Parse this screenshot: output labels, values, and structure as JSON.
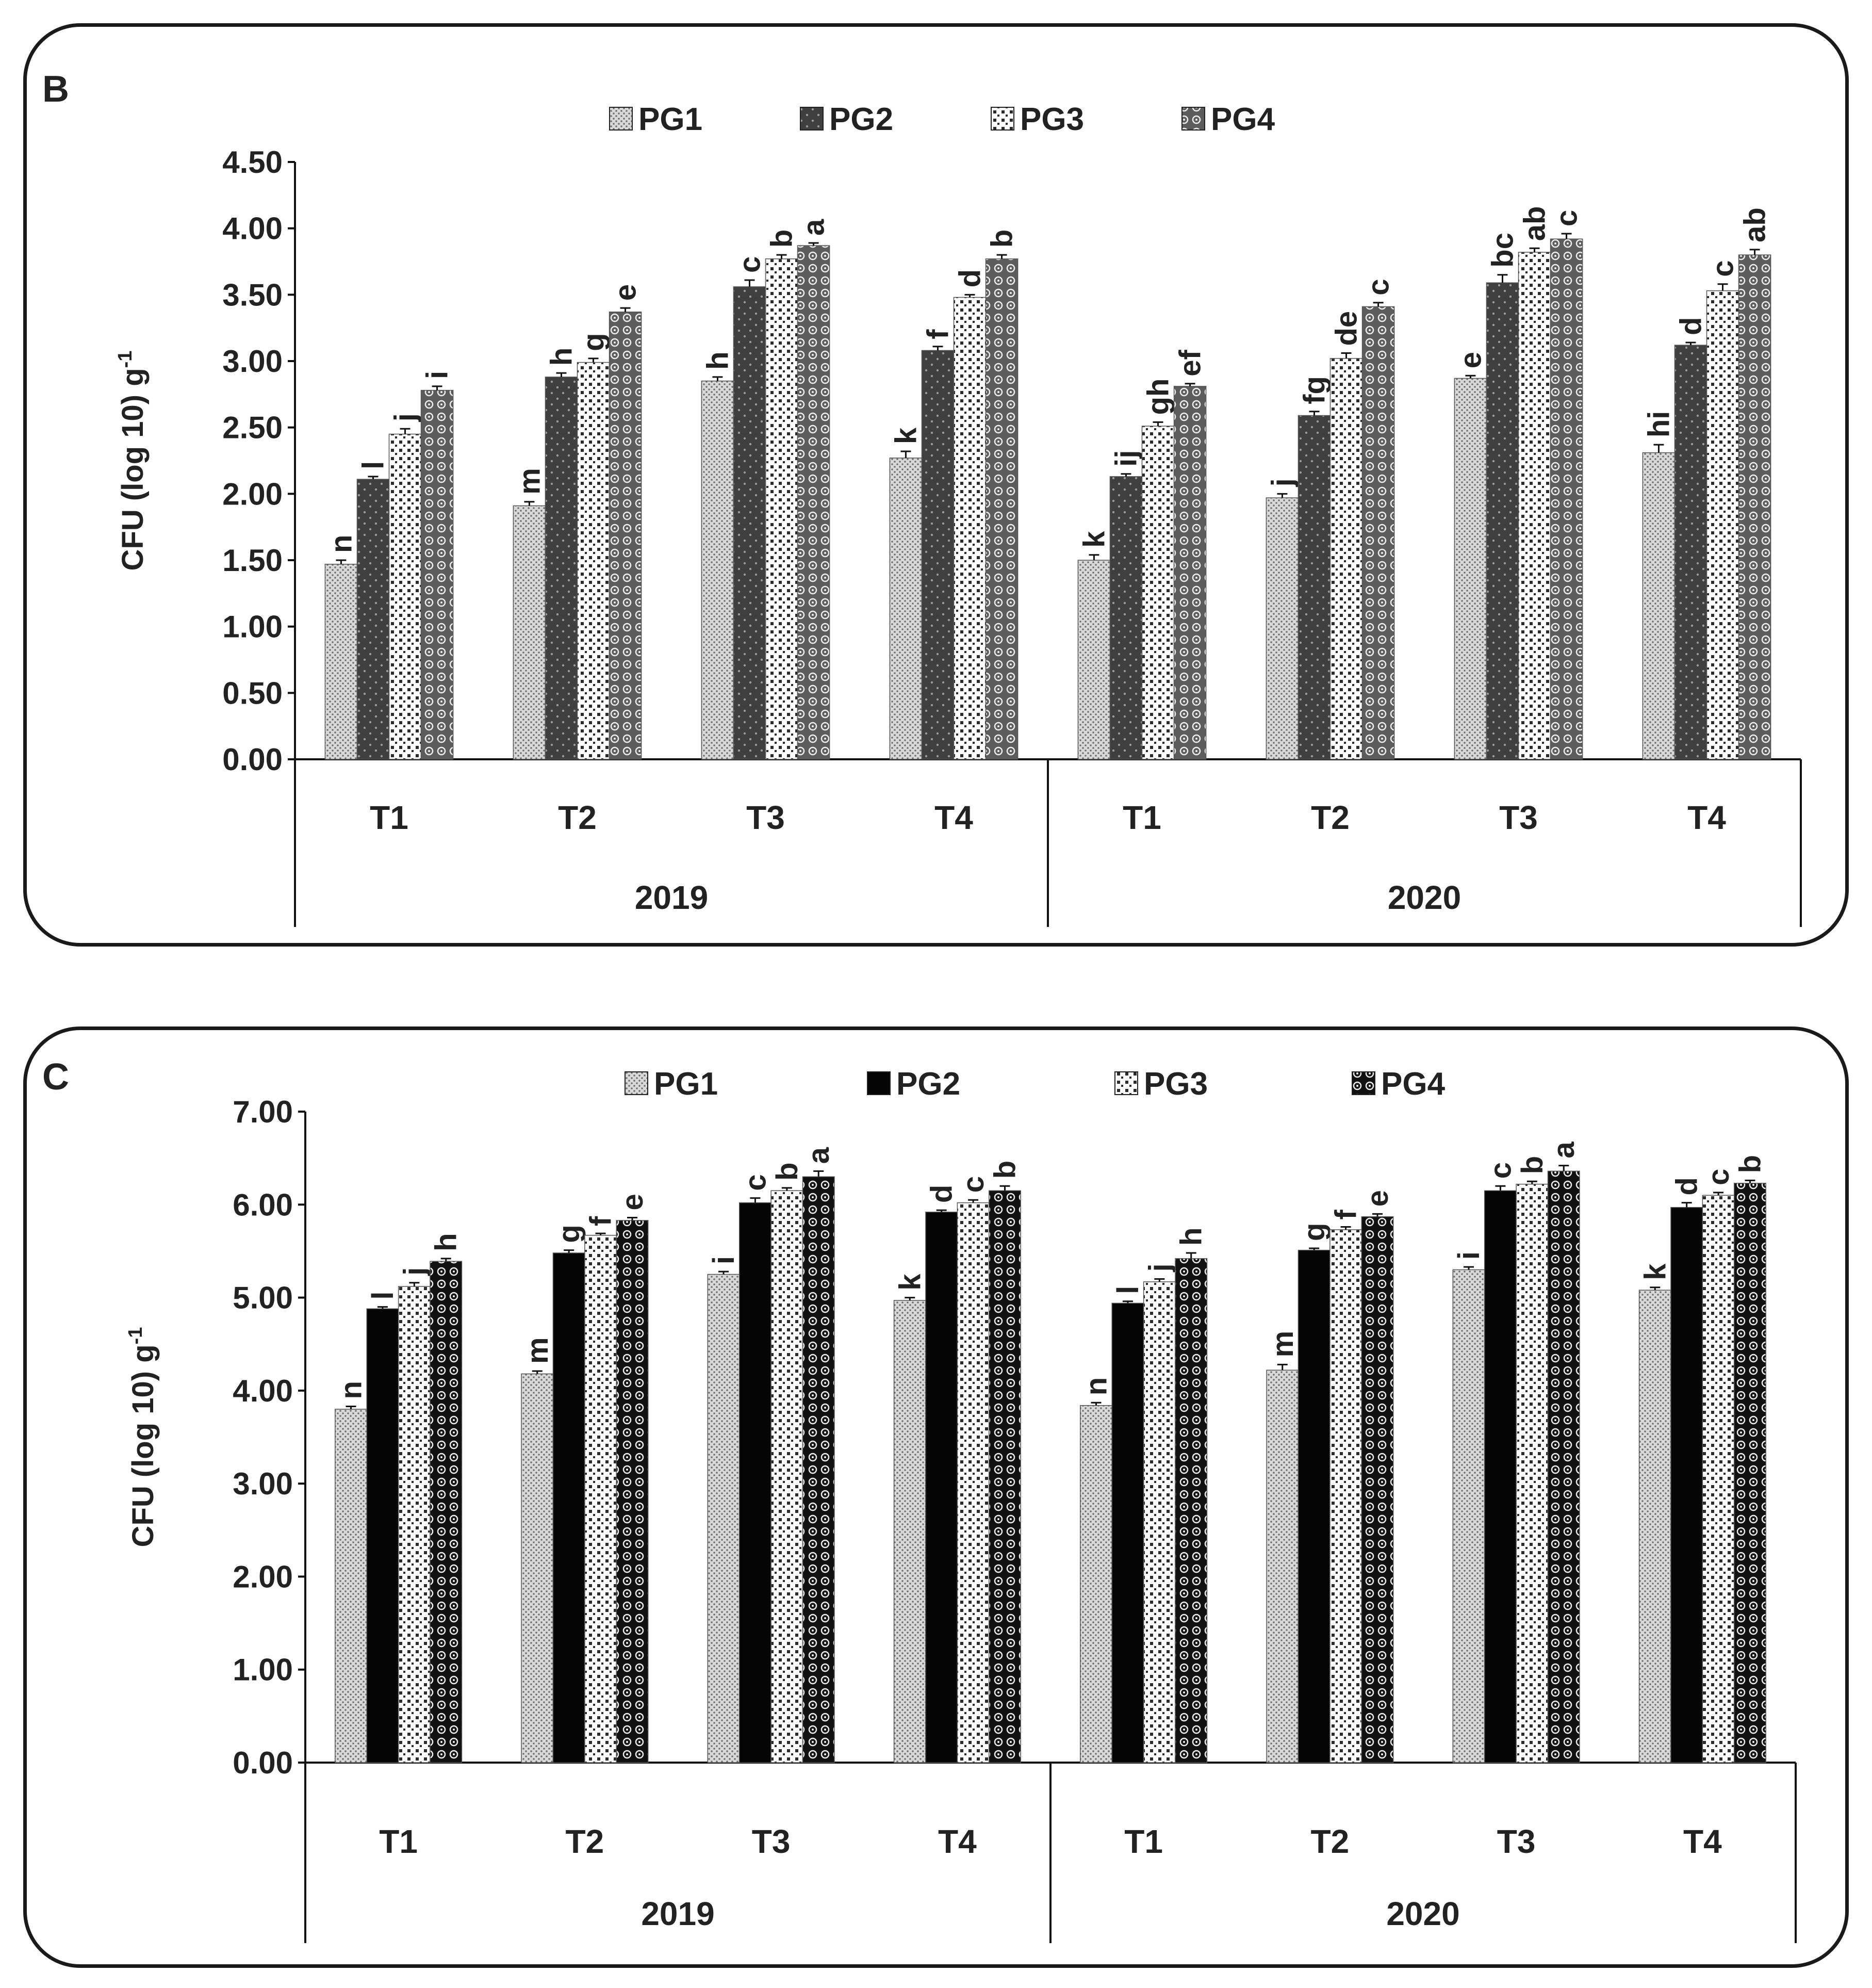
{
  "chart_data": [
    {
      "type": "bar",
      "panel_label": "B",
      "ylabel_main": "CFU (log 10) g",
      "ylabel_sup": "-1",
      "ylim": [
        0,
        4.5
      ],
      "yticks": [
        "0.00",
        "0.50",
        "1.00",
        "1.50",
        "2.00",
        "2.50",
        "3.00",
        "3.50",
        "4.00",
        "4.50"
      ],
      "legend_position": "top-center",
      "groups": [
        "2019",
        "2020"
      ],
      "categories": [
        "T1",
        "T2",
        "T3",
        "T4",
        "T1",
        "T2",
        "T3",
        "T4"
      ],
      "series": [
        {
          "name": "PG1",
          "values": [
            1.47,
            1.91,
            2.85,
            2.27,
            1.5,
            1.97,
            2.87,
            2.31
          ],
          "errors": [
            0.03,
            0.03,
            0.03,
            0.05,
            0.04,
            0.03,
            0.02,
            0.06
          ],
          "labels": [
            "n",
            "m",
            "h",
            "k",
            "k",
            "j",
            "e",
            "hi"
          ]
        },
        {
          "name": "PG2",
          "values": [
            2.11,
            2.88,
            3.56,
            3.08,
            2.13,
            2.59,
            3.59,
            3.12
          ],
          "errors": [
            0.02,
            0.03,
            0.05,
            0.03,
            0.02,
            0.03,
            0.06,
            0.02
          ],
          "labels": [
            "l",
            "h",
            "c",
            "f",
            "ij",
            "fg",
            "bc",
            "d"
          ]
        },
        {
          "name": "PG3",
          "values": [
            2.45,
            2.99,
            3.77,
            3.48,
            2.51,
            3.02,
            3.82,
            3.53
          ],
          "errors": [
            0.04,
            0.03,
            0.03,
            0.02,
            0.03,
            0.04,
            0.03,
            0.05
          ],
          "labels": [
            "j",
            "g",
            "b",
            "d",
            "gh",
            "de",
            "ab",
            "c"
          ]
        },
        {
          "name": "PG4",
          "values": [
            2.78,
            3.37,
            3.87,
            3.77,
            2.81,
            3.41,
            3.92,
            3.8
          ],
          "errors": [
            0.03,
            0.03,
            0.02,
            0.03,
            0.02,
            0.03,
            0.04,
            0.04
          ],
          "labels": [
            "i",
            "e",
            "a",
            "b",
            "ef",
            "c",
            "c",
            "ab"
          ]
        }
      ]
    },
    {
      "type": "bar",
      "panel_label": "C",
      "ylabel_main": "CFU (log 10) g",
      "ylabel_sup": "-1",
      "ylim": [
        0,
        7
      ],
      "yticks": [
        "0.00",
        "1.00",
        "2.00",
        "3.00",
        "4.00",
        "5.00",
        "6.00",
        "7.00"
      ],
      "legend_position": "top-center",
      "groups": [
        "2019",
        "2020"
      ],
      "categories": [
        "T1",
        "T2",
        "T3",
        "T4",
        "T1",
        "T2",
        "T3",
        "T4"
      ],
      "series": [
        {
          "name": "PG1",
          "values": [
            3.8,
            4.18,
            5.25,
            4.97,
            3.84,
            4.22,
            5.3,
            5.08
          ],
          "errors": [
            0.03,
            0.03,
            0.03,
            0.03,
            0.03,
            0.06,
            0.03,
            0.03
          ],
          "labels": [
            "n",
            "m",
            "i",
            "k",
            "n",
            "m",
            "i",
            "k"
          ]
        },
        {
          "name": "PG2",
          "values": [
            4.88,
            5.48,
            6.02,
            5.92,
            4.94,
            5.51,
            6.15,
            5.97
          ],
          "errors": [
            0.02,
            0.03,
            0.05,
            0.02,
            0.02,
            0.02,
            0.05,
            0.05
          ],
          "labels": [
            "l",
            "g",
            "c",
            "d",
            "l",
            "g",
            "c",
            "d"
          ]
        },
        {
          "name": "PG3",
          "values": [
            5.12,
            5.67,
            6.15,
            6.02,
            5.17,
            5.73,
            6.22,
            6.1
          ],
          "errors": [
            0.04,
            0.02,
            0.03,
            0.03,
            0.03,
            0.03,
            0.03,
            0.03
          ],
          "labels": [
            "j",
            "f",
            "b",
            "c",
            "j",
            "f",
            "b",
            "c"
          ]
        },
        {
          "name": "PG4",
          "values": [
            5.39,
            5.83,
            6.3,
            6.15,
            5.42,
            5.87,
            6.36,
            6.23
          ],
          "errors": [
            0.03,
            0.03,
            0.06,
            0.05,
            0.06,
            0.03,
            0.06,
            0.03
          ],
          "labels": [
            "h",
            "e",
            "a",
            "b",
            "h",
            "e",
            "a",
            "b"
          ]
        }
      ]
    }
  ],
  "colors": {
    "PG1_base": "#d8d8d8",
    "PG1_dot": "#707070",
    "PG2_base": "#3f3f3f",
    "PG2_dot": "#9a9a9a",
    "PG3_base": "#ffffff",
    "PG3_dot": "#2a2a2a",
    "PG4_base": "#5c5c5c",
    "PG4_dot": "#eeeeee",
    "PG1_base_c": "#d8d8d8",
    "PG1_dot_c": "#707070",
    "PG2_base_c": "#050505",
    "PG2_dot_c": "#050505",
    "PG3_base_c": "#ffffff",
    "PG3_dot_c": "#2a2a2a",
    "PG4_base_c": "#111111",
    "PG4_dot_c": "#f0f0f0"
  }
}
